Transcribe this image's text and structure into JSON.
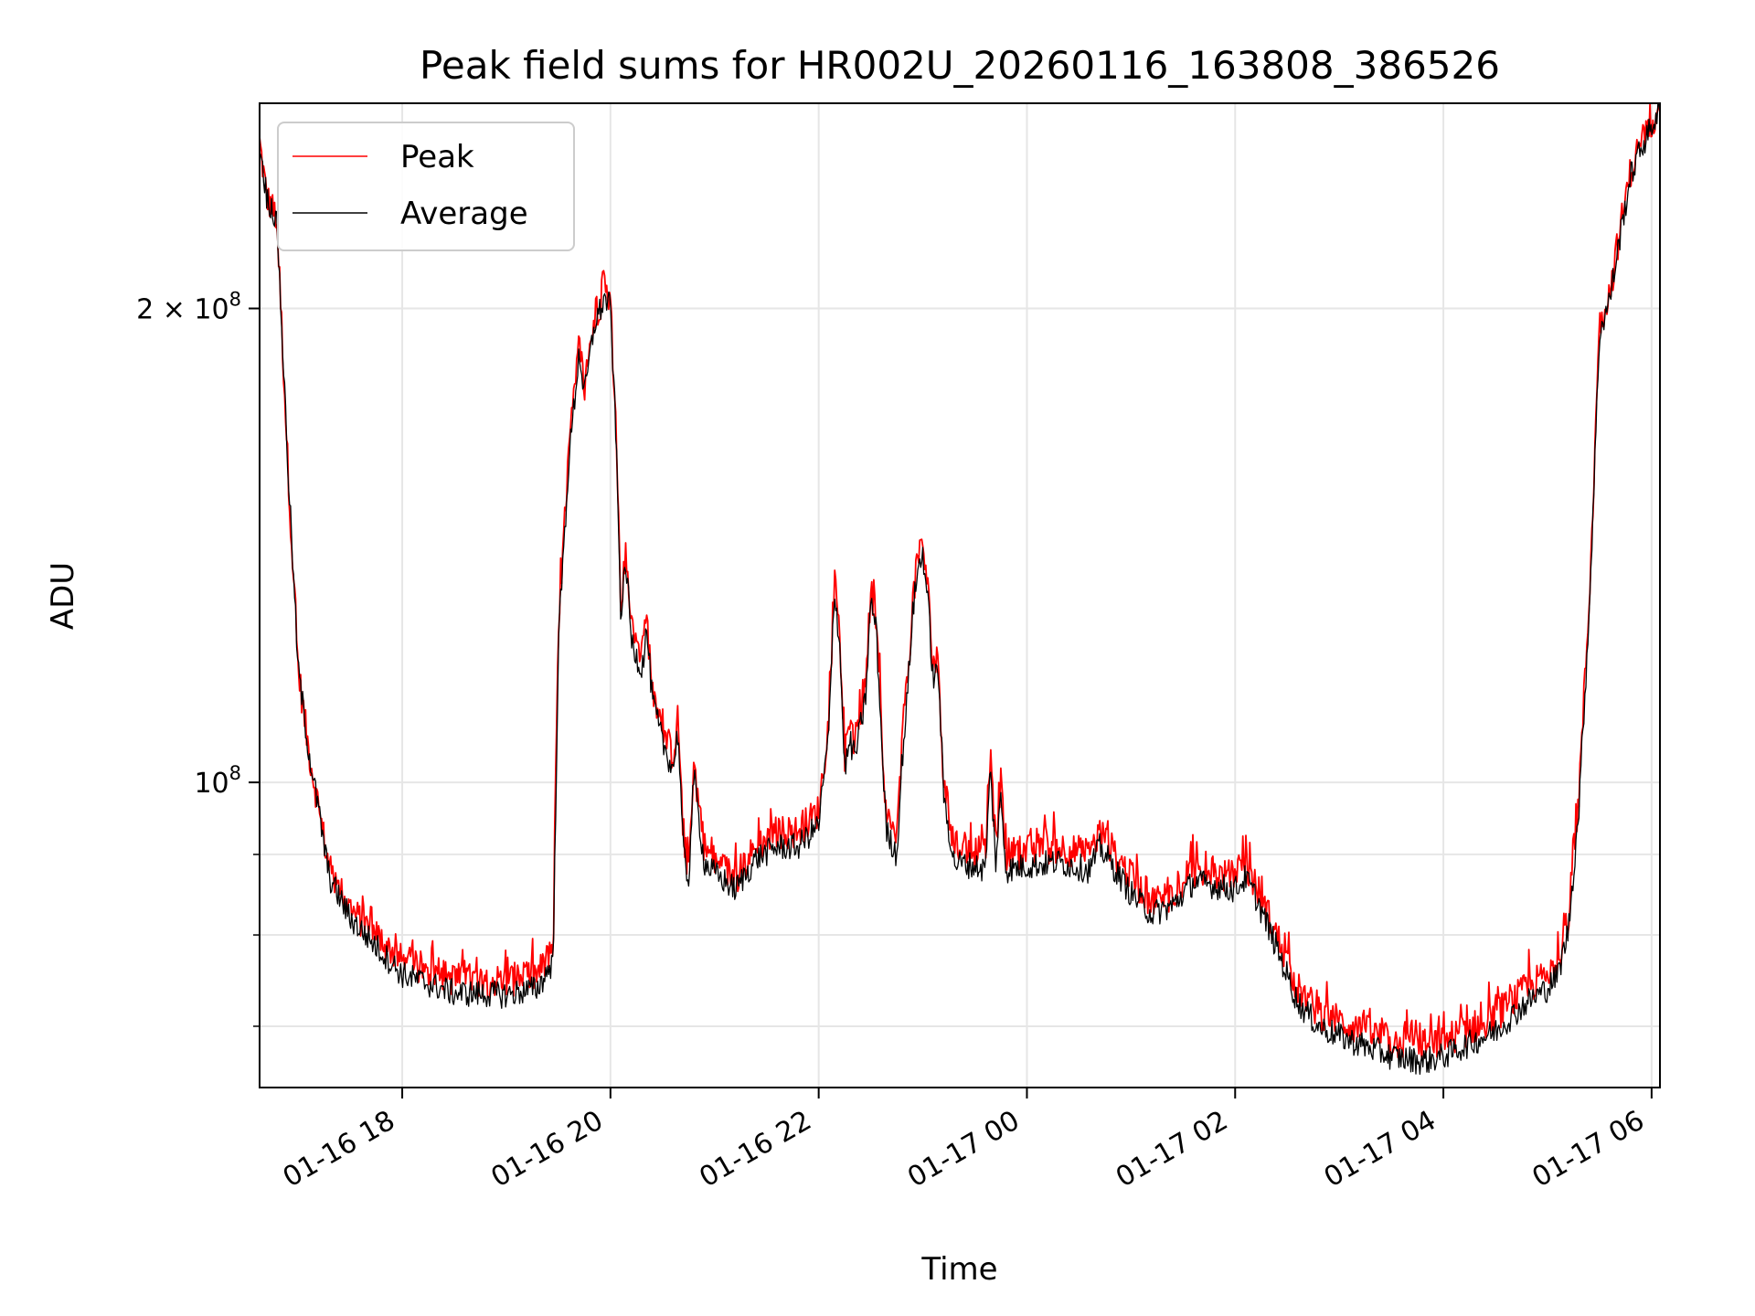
{
  "chart_data": {
    "type": "line",
    "title": "Peak field sums for HR002U_20260116_163808_386526",
    "xlabel": "Time",
    "ylabel": "ADU",
    "yscale": "log",
    "grid": true,
    "legend": {
      "location": "upper-left",
      "entries": [
        "Peak",
        "Average"
      ]
    },
    "xlim_hours": [
      16.63,
      30.08
    ],
    "ylim": [
      64000000,
      270000000
    ],
    "x_ticks": [
      {
        "hour": 18,
        "label": "01-16 18"
      },
      {
        "hour": 20,
        "label": "01-16 20"
      },
      {
        "hour": 22,
        "label": "01-16 22"
      },
      {
        "hour": 24,
        "label": "01-17 00"
      },
      {
        "hour": 26,
        "label": "01-17 02"
      },
      {
        "hour": 28,
        "label": "01-17 04"
      },
      {
        "hour": 30,
        "label": "01-17 06"
      }
    ],
    "y_major_ticks": [
      {
        "value": 100000000,
        "mantissa": "",
        "exponent": "8"
      },
      {
        "value": 200000000,
        "mantissa": "2 × ",
        "exponent": "8"
      }
    ],
    "y_minor_ticks": [
      70000000,
      80000000,
      90000000
    ],
    "series": [
      {
        "name": "Peak",
        "color": "#ff0000",
        "noise": 0.025,
        "spike": 0.035,
        "points": [
          [
            16.63,
            255000000
          ],
          [
            16.7,
            235000000
          ],
          [
            16.75,
            232000000
          ],
          [
            16.8,
            225000000
          ],
          [
            16.9,
            160000000
          ],
          [
            17.0,
            118000000
          ],
          [
            17.1,
            105000000
          ],
          [
            17.3,
            88000000
          ],
          [
            17.5,
            83000000
          ],
          [
            18.0,
            77000000
          ],
          [
            18.5,
            75000000
          ],
          [
            19.0,
            74800000
          ],
          [
            19.3,
            75500000
          ],
          [
            19.45,
            78000000
          ],
          [
            19.5,
            125000000
          ],
          [
            19.6,
            162000000
          ],
          [
            19.7,
            190000000
          ],
          [
            19.75,
            178000000
          ],
          [
            19.85,
            198000000
          ],
          [
            19.95,
            205000000
          ],
          [
            20.0,
            202000000
          ],
          [
            20.05,
            170000000
          ],
          [
            20.1,
            130000000
          ],
          [
            20.15,
            140000000
          ],
          [
            20.2,
            125000000
          ],
          [
            20.3,
            120000000
          ],
          [
            20.35,
            127000000
          ],
          [
            20.4,
            115000000
          ],
          [
            20.5,
            108000000
          ],
          [
            20.6,
            104000000
          ],
          [
            20.65,
            110000000
          ],
          [
            20.7,
            92000000
          ],
          [
            20.75,
            88000000
          ],
          [
            20.8,
            103000000
          ],
          [
            20.9,
            91000000
          ],
          [
            21.0,
            89000000
          ],
          [
            21.2,
            87000000
          ],
          [
            21.4,
            91000000
          ],
          [
            21.6,
            93000000
          ],
          [
            21.8,
            93000000
          ],
          [
            22.0,
            96000000
          ],
          [
            22.1,
            110000000
          ],
          [
            22.15,
            135000000
          ],
          [
            22.2,
            125000000
          ],
          [
            22.25,
            104000000
          ],
          [
            22.3,
            108000000
          ],
          [
            22.35,
            106000000
          ],
          [
            22.45,
            115000000
          ],
          [
            22.5,
            132000000
          ],
          [
            22.55,
            128000000
          ],
          [
            22.6,
            110000000
          ],
          [
            22.65,
            95000000
          ],
          [
            22.75,
            92000000
          ],
          [
            22.8,
            105000000
          ],
          [
            22.85,
            115000000
          ],
          [
            22.9,
            130000000
          ],
          [
            22.95,
            138000000
          ],
          [
            23.0,
            142000000
          ],
          [
            23.05,
            132000000
          ],
          [
            23.1,
            118000000
          ],
          [
            23.15,
            120000000
          ],
          [
            23.2,
            100000000
          ],
          [
            23.3,
            91000000
          ],
          [
            23.5,
            90500000
          ],
          [
            23.6,
            90000000
          ],
          [
            23.65,
            104000000
          ],
          [
            23.7,
            91000000
          ],
          [
            23.75,
            100000000
          ],
          [
            23.8,
            90000000
          ],
          [
            24.0,
            90500000
          ],
          [
            24.3,
            91000000
          ],
          [
            24.6,
            90000000
          ],
          [
            24.7,
            93000000
          ],
          [
            24.8,
            91000000
          ],
          [
            25.0,
            87000000
          ],
          [
            25.2,
            84000000
          ],
          [
            25.4,
            85000000
          ],
          [
            25.6,
            88000000
          ],
          [
            25.8,
            87500000
          ],
          [
            26.0,
            87000000
          ],
          [
            26.1,
            88500000
          ],
          [
            26.2,
            86000000
          ],
          [
            26.4,
            80000000
          ],
          [
            26.6,
            74000000
          ],
          [
            26.8,
            71500000
          ],
          [
            27.0,
            70500000
          ],
          [
            27.5,
            68500000
          ],
          [
            27.8,
            68000000
          ],
          [
            28.0,
            68500000
          ],
          [
            28.5,
            71000000
          ],
          [
            28.8,
            74000000
          ],
          [
            29.0,
            75500000
          ],
          [
            29.1,
            77000000
          ],
          [
            29.2,
            82000000
          ],
          [
            29.3,
            98000000
          ],
          [
            29.4,
            130000000
          ],
          [
            29.5,
            195000000
          ],
          [
            29.6,
            205000000
          ],
          [
            29.7,
            225000000
          ],
          [
            29.8,
            245000000
          ],
          [
            29.9,
            255000000
          ],
          [
            30.0,
            263000000
          ],
          [
            30.08,
            270000000
          ]
        ]
      },
      {
        "name": "Average",
        "color": "#000000",
        "noise": 0.02,
        "spike": 0.0,
        "points": [
          [
            16.63,
            255000000
          ],
          [
            16.7,
            235000000
          ],
          [
            16.75,
            232000000
          ],
          [
            16.8,
            225000000
          ],
          [
            16.9,
            160000000
          ],
          [
            17.0,
            118000000
          ],
          [
            17.1,
            105000000
          ],
          [
            17.3,
            87000000
          ],
          [
            17.5,
            82000000
          ],
          [
            18.0,
            75500000
          ],
          [
            18.5,
            73500000
          ],
          [
            19.0,
            73300000
          ],
          [
            19.3,
            74000000
          ],
          [
            19.45,
            77000000
          ],
          [
            19.5,
            123000000
          ],
          [
            19.6,
            160000000
          ],
          [
            19.7,
            188000000
          ],
          [
            19.75,
            176000000
          ],
          [
            19.85,
            196000000
          ],
          [
            19.95,
            203000000
          ],
          [
            20.0,
            200000000
          ],
          [
            20.05,
            168000000
          ],
          [
            20.1,
            128000000
          ],
          [
            20.15,
            138000000
          ],
          [
            20.2,
            123000000
          ],
          [
            20.3,
            118000000
          ],
          [
            20.35,
            125000000
          ],
          [
            20.4,
            113000000
          ],
          [
            20.5,
            106000000
          ],
          [
            20.6,
            102000000
          ],
          [
            20.65,
            108000000
          ],
          [
            20.7,
            90000000
          ],
          [
            20.75,
            86500000
          ],
          [
            20.8,
            101000000
          ],
          [
            20.9,
            89000000
          ],
          [
            21.0,
            87500000
          ],
          [
            21.2,
            85500000
          ],
          [
            21.4,
            89500000
          ],
          [
            21.6,
            91000000
          ],
          [
            21.8,
            91000000
          ],
          [
            22.0,
            94000000
          ],
          [
            22.1,
            108000000
          ],
          [
            22.15,
            133000000
          ],
          [
            22.2,
            123000000
          ],
          [
            22.25,
            102000000
          ],
          [
            22.3,
            106000000
          ],
          [
            22.35,
            104000000
          ],
          [
            22.45,
            113000000
          ],
          [
            22.5,
            130000000
          ],
          [
            22.55,
            126000000
          ],
          [
            22.6,
            108000000
          ],
          [
            22.65,
            93000000
          ],
          [
            22.75,
            90000000
          ],
          [
            22.8,
            103000000
          ],
          [
            22.85,
            113000000
          ],
          [
            22.9,
            128000000
          ],
          [
            22.95,
            136000000
          ],
          [
            23.0,
            140000000
          ],
          [
            23.05,
            130000000
          ],
          [
            23.1,
            116000000
          ],
          [
            23.15,
            118000000
          ],
          [
            23.2,
            98000000
          ],
          [
            23.3,
            89000000
          ],
          [
            23.5,
            88500000
          ],
          [
            23.6,
            88000000
          ],
          [
            23.65,
            102000000
          ],
          [
            23.7,
            89000000
          ],
          [
            23.75,
            98000000
          ],
          [
            23.8,
            88000000
          ],
          [
            24.0,
            88500000
          ],
          [
            24.3,
            89000000
          ],
          [
            24.6,
            88000000
          ],
          [
            24.7,
            91000000
          ],
          [
            24.8,
            89000000
          ],
          [
            25.0,
            85000000
          ],
          [
            25.2,
            82500000
          ],
          [
            25.4,
            83500000
          ],
          [
            25.6,
            86500000
          ],
          [
            25.8,
            86000000
          ],
          [
            26.0,
            85500000
          ],
          [
            26.1,
            87000000
          ],
          [
            26.2,
            84500000
          ],
          [
            26.4,
            78500000
          ],
          [
            26.6,
            72500000
          ],
          [
            26.8,
            70000000
          ],
          [
            27.0,
            69000000
          ],
          [
            27.5,
            67000000
          ],
          [
            27.8,
            66500000
          ],
          [
            28.0,
            67000000
          ],
          [
            28.5,
            69500000
          ],
          [
            28.8,
            72500000
          ],
          [
            29.0,
            74000000
          ],
          [
            29.1,
            75500000
          ],
          [
            29.2,
            80500000
          ],
          [
            29.3,
            96000000
          ],
          [
            29.4,
            128000000
          ],
          [
            29.5,
            193000000
          ],
          [
            29.6,
            203000000
          ],
          [
            29.7,
            223000000
          ],
          [
            29.8,
            243000000
          ],
          [
            29.9,
            253000000
          ],
          [
            30.0,
            261000000
          ],
          [
            30.08,
            268000000
          ]
        ]
      }
    ]
  }
}
